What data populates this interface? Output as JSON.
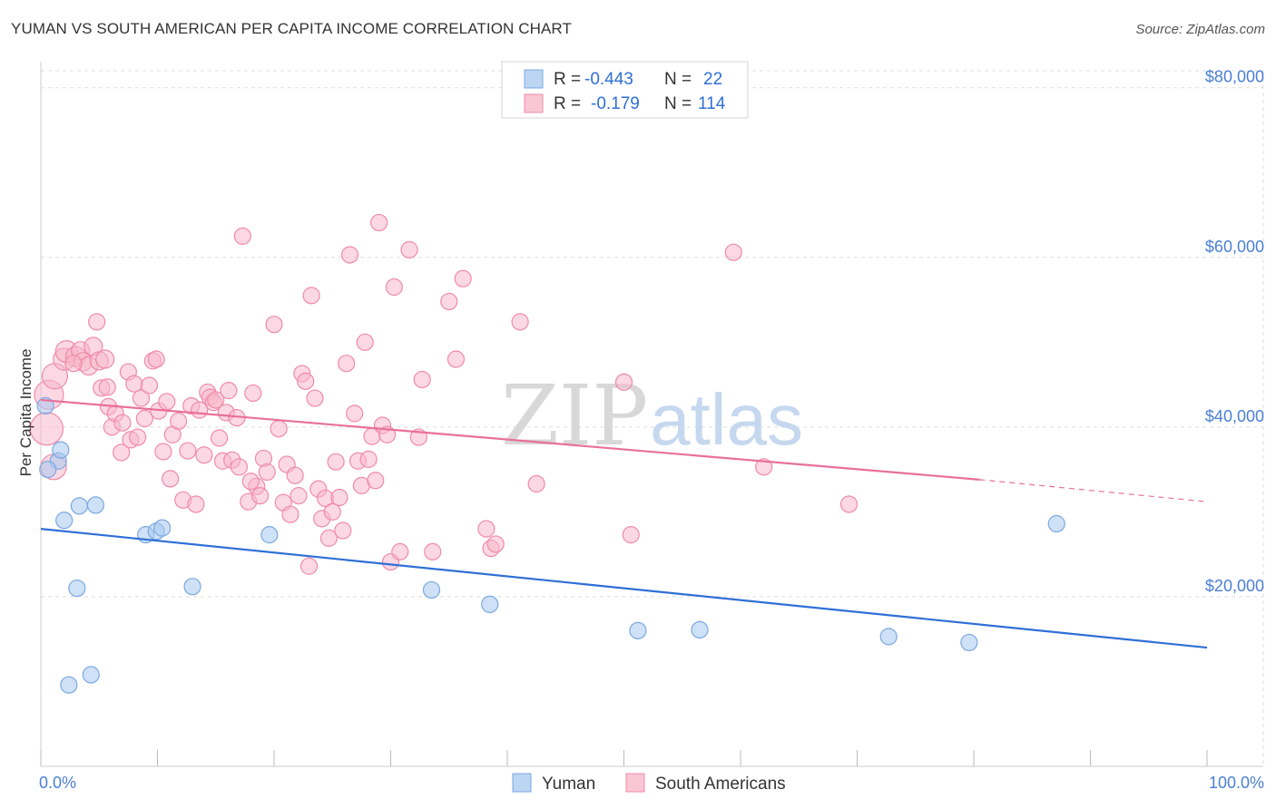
{
  "header": {
    "title": "YUMAN VS SOUTH AMERICAN PER CAPITA INCOME CORRELATION CHART",
    "source": "Source: ZipAtlas.com"
  },
  "watermark": {
    "zip": "ZIP",
    "atlas": "atlas"
  },
  "legend_box": {
    "rows": [
      {
        "r_label": "R =",
        "r_value": "-0.443",
        "n_label": "N =",
        "n_value": "22",
        "color": "#a8c8f0"
      },
      {
        "r_label": "R =",
        "r_value": "-0.179",
        "n_label": "N =",
        "n_value": "114",
        "color": "#f8b8cc"
      }
    ]
  },
  "bottom_legend": {
    "items": [
      "Yuman",
      "South Americans"
    ]
  },
  "chart_data": {
    "type": "scatter",
    "title": "YUMAN VS SOUTH AMERICAN PER CAPITA INCOME CORRELATION CHART",
    "xlabel": "",
    "ylabel": "Per Capita Income",
    "xlim": [
      0,
      100
    ],
    "ylim": [
      0,
      82000
    ],
    "x_tick_labels": [
      "0.0%",
      "100.0%"
    ],
    "y_ticks": [
      20000,
      40000,
      60000,
      80000
    ],
    "y_tick_labels": [
      "$20,000",
      "$40,000",
      "$60,000",
      "$80,000"
    ],
    "grid": true,
    "legend_position": "top-center",
    "series": [
      {
        "name": "Yuman",
        "color": "#a8c8f0",
        "stroke": "#7aa8e0",
        "line_color": "#2f6fd6",
        "trend": {
          "x": [
            0,
            100
          ],
          "y": [
            28000,
            14000
          ]
        },
        "points": [
          [
            0.4,
            42500,
            9
          ],
          [
            1.5,
            36000,
            9
          ],
          [
            1.7,
            37300,
            9
          ],
          [
            0.6,
            35000,
            9
          ],
          [
            2.0,
            29000,
            9
          ],
          [
            3.3,
            30700,
            9
          ],
          [
            4.7,
            30800,
            9
          ],
          [
            3.1,
            21000,
            9
          ],
          [
            2.4,
            9600,
            9
          ],
          [
            4.3,
            10800,
            9
          ],
          [
            9.0,
            27300,
            9
          ],
          [
            9.9,
            27700,
            9
          ],
          [
            10.4,
            28100,
            9
          ],
          [
            13.0,
            21200,
            9
          ],
          [
            19.6,
            27300,
            9
          ],
          [
            33.5,
            20800,
            9
          ],
          [
            38.5,
            19100,
            9
          ],
          [
            51.2,
            16000,
            9
          ],
          [
            56.5,
            16100,
            9
          ],
          [
            72.7,
            15300,
            9
          ],
          [
            79.6,
            14600,
            9
          ],
          [
            87.1,
            28600,
            9
          ]
        ]
      },
      {
        "name": "South Americans",
        "color": "#f8b8cc",
        "stroke": "#f08aaa",
        "line_color": "#e8709a",
        "trend": {
          "x": [
            0,
            80.5
          ],
          "y": [
            43200,
            33800
          ]
        },
        "trend_dashed": {
          "x": [
            80.5,
            100
          ],
          "y": [
            33800,
            31200
          ]
        },
        "points": [
          [
            0.5,
            39800,
            18
          ],
          [
            0.7,
            43800,
            16
          ],
          [
            1.1,
            35300,
            14
          ],
          [
            1.2,
            46000,
            14
          ],
          [
            2.0,
            48000,
            12
          ],
          [
            2.2,
            48900,
            12
          ],
          [
            3.0,
            48300,
            11
          ],
          [
            3.4,
            49000,
            10
          ],
          [
            3.6,
            47700,
            10
          ],
          [
            4.1,
            47200,
            10
          ],
          [
            4.5,
            49500,
            10
          ],
          [
            5.0,
            47800,
            10
          ],
          [
            5.5,
            48000,
            10
          ],
          [
            4.8,
            52400,
            9
          ],
          [
            2.8,
            47500,
            9
          ],
          [
            5.2,
            44600,
            9
          ],
          [
            5.7,
            44700,
            9
          ],
          [
            5.8,
            42400,
            9
          ],
          [
            6.1,
            40000,
            9
          ],
          [
            6.4,
            41600,
            9
          ],
          [
            6.9,
            37000,
            9
          ],
          [
            7.5,
            46500,
            9
          ],
          [
            7.7,
            38500,
            9
          ],
          [
            8.0,
            45100,
            9
          ],
          [
            8.3,
            38800,
            9
          ],
          [
            8.6,
            43400,
            9
          ],
          [
            8.9,
            41000,
            9
          ],
          [
            9.3,
            44900,
            9
          ],
          [
            9.6,
            47800,
            9
          ],
          [
            9.9,
            48000,
            9
          ],
          [
            10.1,
            41900,
            9
          ],
          [
            10.5,
            37100,
            9
          ],
          [
            10.8,
            43000,
            9
          ],
          [
            11.1,
            33900,
            9
          ],
          [
            11.3,
            39100,
            9
          ],
          [
            11.8,
            40700,
            9
          ],
          [
            12.2,
            31400,
            9
          ],
          [
            12.6,
            37200,
            9
          ],
          [
            12.9,
            42500,
            9
          ],
          [
            13.3,
            30900,
            9
          ],
          [
            13.6,
            42000,
            9
          ],
          [
            14.0,
            36700,
            9
          ],
          [
            14.3,
            44100,
            9
          ],
          [
            14.5,
            43500,
            9
          ],
          [
            14.8,
            42900,
            9
          ],
          [
            15.0,
            43200,
            9
          ],
          [
            15.3,
            38700,
            9
          ],
          [
            15.6,
            36000,
            9
          ],
          [
            15.9,
            41700,
            9
          ],
          [
            16.1,
            44300,
            9
          ],
          [
            16.4,
            36100,
            9
          ],
          [
            16.8,
            41100,
            9
          ],
          [
            17.0,
            35300,
            9
          ],
          [
            17.3,
            62500,
            9
          ],
          [
            17.8,
            31200,
            9
          ],
          [
            18.2,
            44000,
            9
          ],
          [
            18.5,
            33000,
            9
          ],
          [
            18.8,
            31900,
            9
          ],
          [
            19.1,
            36300,
            9
          ],
          [
            19.4,
            34700,
            9
          ],
          [
            20.0,
            52100,
            9
          ],
          [
            20.4,
            39800,
            9
          ],
          [
            20.8,
            31100,
            9
          ],
          [
            21.1,
            35600,
            9
          ],
          [
            21.4,
            29700,
            9
          ],
          [
            21.8,
            34300,
            9
          ],
          [
            22.1,
            31900,
            9
          ],
          [
            22.4,
            46300,
            9
          ],
          [
            22.7,
            45400,
            9
          ],
          [
            23.0,
            23600,
            9
          ],
          [
            23.2,
            55500,
            9
          ],
          [
            23.5,
            43400,
            9
          ],
          [
            23.8,
            32700,
            9
          ],
          [
            24.1,
            29200,
            9
          ],
          [
            24.4,
            31600,
            9
          ],
          [
            24.7,
            26900,
            9
          ],
          [
            25.0,
            30000,
            9
          ],
          [
            25.3,
            35900,
            9
          ],
          [
            25.6,
            31700,
            9
          ],
          [
            25.9,
            27800,
            9
          ],
          [
            26.2,
            47500,
            9
          ],
          [
            26.5,
            60300,
            9
          ],
          [
            26.9,
            41600,
            9
          ],
          [
            27.2,
            36000,
            9
          ],
          [
            27.5,
            33100,
            9
          ],
          [
            27.8,
            50000,
            9
          ],
          [
            28.1,
            36200,
            9
          ],
          [
            28.4,
            38900,
            9
          ],
          [
            28.7,
            33700,
            9
          ],
          [
            29.0,
            64100,
            9
          ],
          [
            29.3,
            40200,
            9
          ],
          [
            29.7,
            39100,
            9
          ],
          [
            30.0,
            24100,
            9
          ],
          [
            30.3,
            56500,
            9
          ],
          [
            30.8,
            25300,
            9
          ],
          [
            31.6,
            60900,
            9
          ],
          [
            32.4,
            38800,
            9
          ],
          [
            32.7,
            45600,
            9
          ],
          [
            33.6,
            25300,
            9
          ],
          [
            35.0,
            54800,
            9
          ],
          [
            35.6,
            48000,
            9
          ],
          [
            36.2,
            57500,
            9
          ],
          [
            38.2,
            28000,
            9
          ],
          [
            38.6,
            25700,
            9
          ],
          [
            39.0,
            26200,
            9
          ],
          [
            41.1,
            52400,
            9
          ],
          [
            42.5,
            33300,
            9
          ],
          [
            50.0,
            45300,
            9
          ],
          [
            50.6,
            27300,
            9
          ],
          [
            59.4,
            60600,
            9
          ],
          [
            62.0,
            35300,
            9
          ],
          [
            69.3,
            30900,
            9
          ],
          [
            7.0,
            40500,
            9
          ],
          [
            18.0,
            33600,
            9
          ]
        ]
      }
    ]
  }
}
